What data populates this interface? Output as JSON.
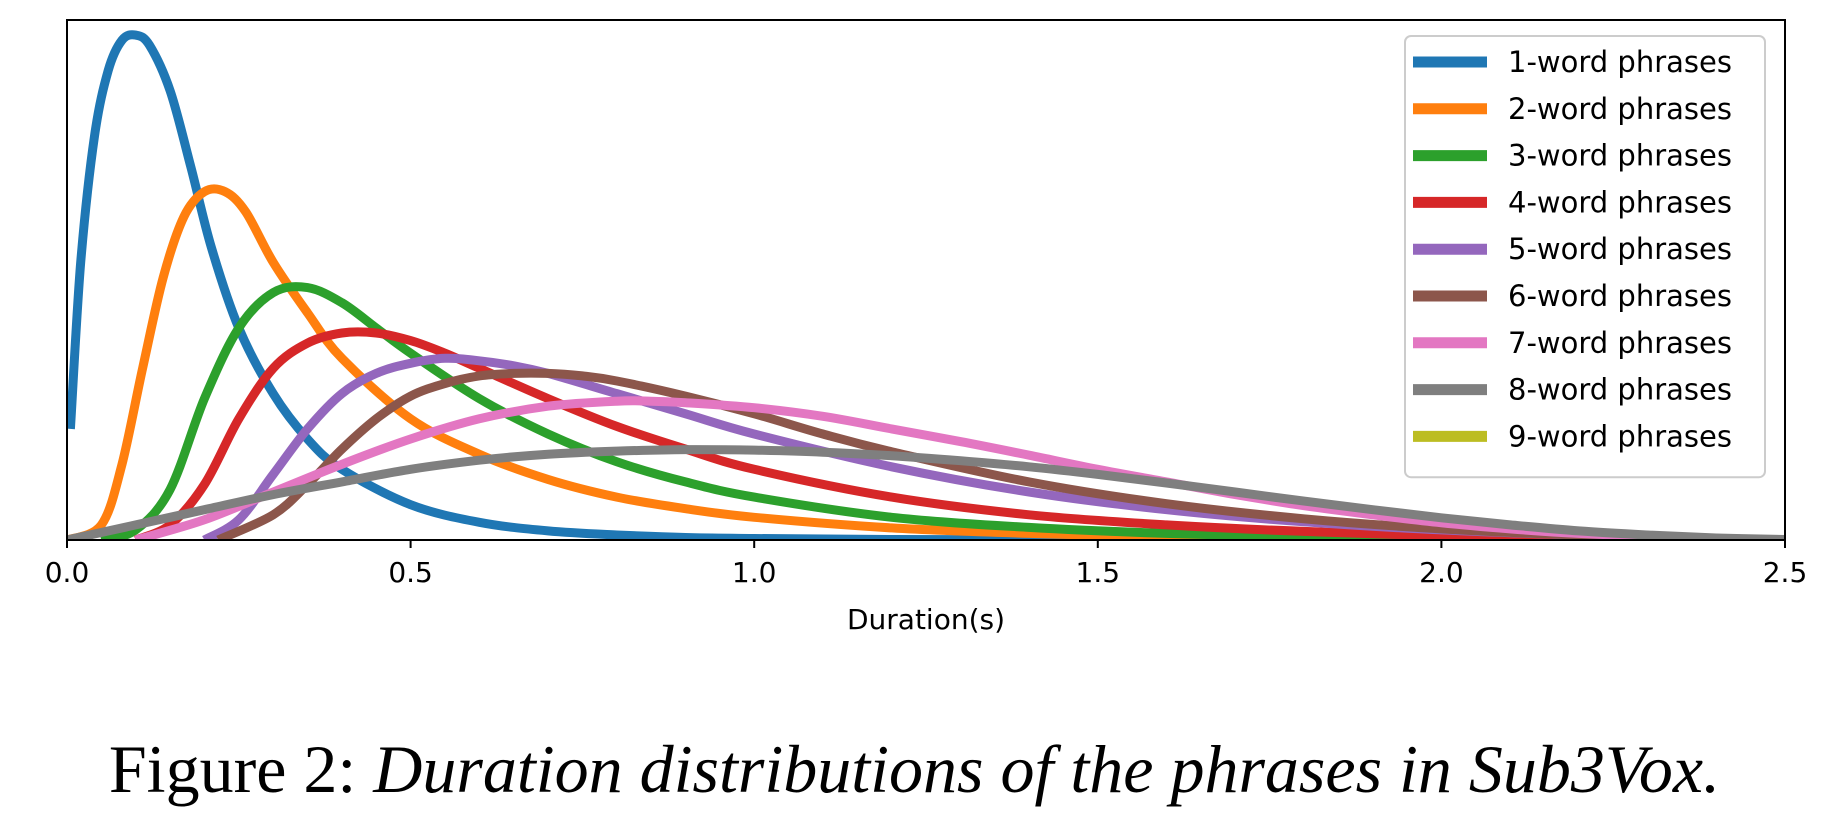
{
  "caption": {
    "prefix": "Figure 2:",
    "text": "Duration distributions of the phrases in Sub3Vox."
  },
  "chart_data": {
    "type": "line",
    "xlabel": "Duration(s)",
    "ylabel": "",
    "xlim": [
      0.0,
      2.5
    ],
    "xticks": [
      "0.0",
      "0.5",
      "1.0",
      "1.5",
      "2.0",
      "2.5"
    ],
    "ylim": [
      0,
      1.03
    ],
    "yticks_shown": false,
    "grid": false,
    "legend_position": "top-right",
    "series": [
      {
        "name": "1-word phrases",
        "color": "#1f77b4",
        "x": [
          0.005,
          0.02,
          0.04,
          0.06,
          0.08,
          0.1,
          0.12,
          0.15,
          0.18,
          0.21,
          0.25,
          0.3,
          0.35,
          0.4,
          0.5,
          0.6,
          0.7,
          0.8,
          0.9,
          1.0,
          1.2,
          1.5,
          2.0,
          2.5
        ],
        "y": [
          0.22,
          0.55,
          0.8,
          0.93,
          0.99,
          1.0,
          0.98,
          0.89,
          0.74,
          0.58,
          0.42,
          0.29,
          0.2,
          0.14,
          0.07,
          0.035,
          0.018,
          0.01,
          0.005,
          0.003,
          0.001,
          0.0,
          0.0,
          0.0
        ]
      },
      {
        "name": "2-word phrases",
        "color": "#ff7f0e",
        "x": [
          0.0,
          0.05,
          0.08,
          0.11,
          0.14,
          0.17,
          0.2,
          0.23,
          0.26,
          0.3,
          0.35,
          0.4,
          0.5,
          0.6,
          0.7,
          0.8,
          0.9,
          1.0,
          1.2,
          1.4,
          1.6,
          1.8,
          2.0,
          2.5
        ],
        "y": [
          0.0,
          0.03,
          0.15,
          0.34,
          0.52,
          0.64,
          0.69,
          0.69,
          0.65,
          0.55,
          0.45,
          0.36,
          0.24,
          0.17,
          0.12,
          0.085,
          0.062,
          0.045,
          0.024,
          0.013,
          0.007,
          0.004,
          0.002,
          0.0
        ]
      },
      {
        "name": "3-word phrases",
        "color": "#2ca02c",
        "x": [
          0.05,
          0.1,
          0.15,
          0.2,
          0.25,
          0.3,
          0.35,
          0.4,
          0.45,
          0.5,
          0.6,
          0.7,
          0.8,
          0.9,
          1.0,
          1.2,
          1.4,
          1.6,
          1.8,
          2.0,
          2.5
        ],
        "y": [
          0.0,
          0.02,
          0.1,
          0.28,
          0.42,
          0.49,
          0.5,
          0.47,
          0.42,
          0.37,
          0.28,
          0.21,
          0.155,
          0.115,
          0.085,
          0.045,
          0.025,
          0.013,
          0.007,
          0.003,
          0.0
        ]
      },
      {
        "name": "4-word phrases",
        "color": "#d62728",
        "x": [
          0.1,
          0.15,
          0.2,
          0.25,
          0.3,
          0.35,
          0.4,
          0.45,
          0.5,
          0.55,
          0.6,
          0.7,
          0.8,
          0.9,
          1.0,
          1.2,
          1.4,
          1.6,
          1.8,
          2.0,
          2.3,
          2.5
        ],
        "y": [
          0.0,
          0.03,
          0.11,
          0.24,
          0.34,
          0.39,
          0.41,
          0.41,
          0.395,
          0.37,
          0.34,
          0.28,
          0.225,
          0.18,
          0.14,
          0.085,
          0.05,
          0.03,
          0.017,
          0.009,
          0.003,
          0.0
        ]
      },
      {
        "name": "5-word phrases",
        "color": "#9467bd",
        "x": [
          0.2,
          0.25,
          0.3,
          0.35,
          0.4,
          0.45,
          0.5,
          0.55,
          0.6,
          0.65,
          0.7,
          0.8,
          0.9,
          1.0,
          1.2,
          1.4,
          1.6,
          1.8,
          2.0,
          2.2,
          2.5
        ],
        "y": [
          0.0,
          0.04,
          0.13,
          0.22,
          0.29,
          0.33,
          0.35,
          0.36,
          0.355,
          0.345,
          0.33,
          0.29,
          0.25,
          0.21,
          0.145,
          0.095,
          0.06,
          0.036,
          0.02,
          0.01,
          0.0
        ]
      },
      {
        "name": "6-word phrases",
        "color": "#8c564b",
        "x": [
          0.22,
          0.3,
          0.35,
          0.4,
          0.45,
          0.5,
          0.55,
          0.6,
          0.65,
          0.7,
          0.75,
          0.8,
          0.9,
          1.0,
          1.1,
          1.2,
          1.4,
          1.6,
          1.8,
          2.0,
          2.2,
          2.5
        ],
        "y": [
          0.0,
          0.05,
          0.11,
          0.18,
          0.24,
          0.285,
          0.31,
          0.325,
          0.33,
          0.33,
          0.325,
          0.315,
          0.285,
          0.25,
          0.21,
          0.175,
          0.115,
          0.072,
          0.042,
          0.022,
          0.01,
          0.0
        ]
      },
      {
        "name": "7-word phrases",
        "color": "#e377c2",
        "x": [
          0.1,
          0.2,
          0.3,
          0.4,
          0.5,
          0.6,
          0.7,
          0.8,
          0.85,
          0.9,
          1.0,
          1.1,
          1.2,
          1.3,
          1.4,
          1.5,
          1.6,
          1.7,
          1.8,
          1.9,
          2.0,
          2.1,
          2.2,
          2.35,
          2.5
        ],
        "y": [
          0.0,
          0.04,
          0.095,
          0.15,
          0.2,
          0.24,
          0.265,
          0.275,
          0.275,
          0.272,
          0.262,
          0.245,
          0.22,
          0.195,
          0.168,
          0.14,
          0.115,
          0.09,
          0.068,
          0.05,
          0.034,
          0.022,
          0.013,
          0.005,
          0.0
        ]
      },
      {
        "name": "8-word phrases",
        "color": "#7f7f7f",
        "x": [
          0.0,
          0.1,
          0.2,
          0.3,
          0.4,
          0.5,
          0.6,
          0.7,
          0.8,
          0.9,
          1.0,
          1.1,
          1.2,
          1.3,
          1.4,
          1.5,
          1.6,
          1.7,
          1.8,
          1.9,
          2.0,
          2.1,
          2.2,
          2.3,
          2.4,
          2.5
        ],
        "y": [
          0.0,
          0.03,
          0.06,
          0.09,
          0.115,
          0.14,
          0.158,
          0.17,
          0.176,
          0.179,
          0.178,
          0.174,
          0.167,
          0.157,
          0.145,
          0.13,
          0.113,
          0.095,
          0.077,
          0.06,
          0.044,
          0.03,
          0.018,
          0.01,
          0.004,
          0.001
        ]
      },
      {
        "name": "9-word phrases",
        "color": "#bcbd22",
        "x": [],
        "y": []
      }
    ]
  }
}
